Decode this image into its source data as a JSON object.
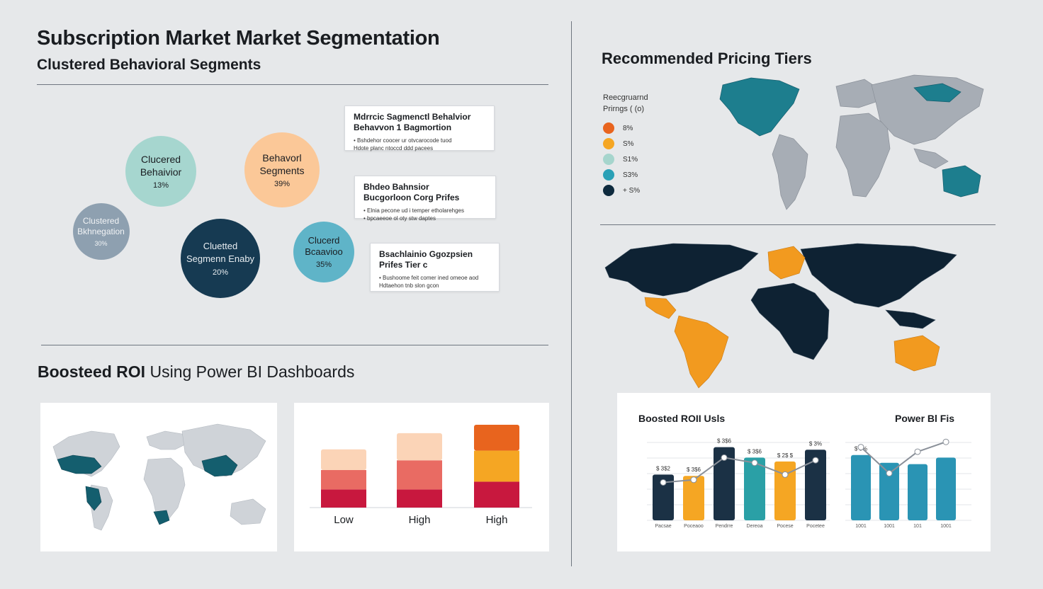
{
  "header": {
    "title": "Subscription Market Market Segmentation",
    "subtitle": "Clustered Behavioral Segments"
  },
  "bubbles": [
    {
      "label_1": "Clucered",
      "label_2": "Behaivior",
      "value": "13%",
      "color": "#6dbcb0"
    },
    {
      "label_1": "Behavorl",
      "label_2": "Segments",
      "value": "39%",
      "color": "#f39a1c"
    },
    {
      "label_1": "Clustered",
      "label_2": "Bkhnegation",
      "value": "30%",
      "color": "#55697a"
    },
    {
      "label_1": "Cluetted",
      "label_2": "Segmenn Enaby",
      "value": "20%",
      "color": "#0e2a3e"
    },
    {
      "label_1": "Clucerd",
      "label_2": "Bcaavioo",
      "value": "35%",
      "color": "#1b8fa8"
    }
  ],
  "callouts": [
    {
      "title_1": "Mdrrcic Sagmenctl Behalvior",
      "title_2": "Behavvon 1 Bagmortion",
      "body_1": "• Bshdehor coocer ur otvcarocode tuod",
      "body_2": "  Hdote planc ntoccd ddd pacees"
    },
    {
      "title_1": "Bhdeo Bahnsior",
      "title_2": "Bucgorloon Corg Prifes",
      "body_1": "• Elnia pecone ud i temper etholarehges",
      "body_2": "• bpcaeeoe ol oty stw daptes"
    },
    {
      "title_1": "Bsachlainio Ggozpsien",
      "title_2": "Prifes Tier c",
      "body_1": "• Bushoome feit comer ined omeoe aod",
      "body_2": "  Hdtaehon tnb slon gcon"
    }
  ],
  "roi": {
    "title_bold": "Boosteed ROI",
    "title_rest": " Using Power BI Dashboards"
  },
  "stacked_chart": {
    "categories": [
      "Low",
      "High",
      "High"
    ]
  },
  "pricing": {
    "title": "Recommended Pricing Tiers",
    "legend_title_1": "Reecgruarnd",
    "legend_title_2": "Prirngs ( (o)",
    "legend": [
      {
        "label": "8%",
        "color": "#e8641e"
      },
      {
        "label": "S%",
        "color": "#f5a623"
      },
      {
        "label": "S1%",
        "color": "#a6d5cd"
      },
      {
        "label": "S3%",
        "color": "#2aa0b6"
      },
      {
        "label": "+  S%",
        "color": "#0e2a3e"
      }
    ]
  },
  "roi_chart": {
    "title": "Boosted ROII Usls",
    "title_right": "Power Bl Fis"
  },
  "chart_data": [
    {
      "type": "bar",
      "title": "",
      "categories": [
        "Low",
        "High",
        "High"
      ],
      "series": [
        {
          "values": [
            28,
            28,
            40
          ],
          "color": "#c8183e"
        },
        {
          "values": [
            30,
            45,
            48
          ],
          "color": "#e96b63"
        },
        {
          "values": [
            32,
            42,
            40
          ],
          "color": "#fbd4b7"
        }
      ],
      "colors_by_category_top": [
        "#fbd4b7",
        "#fbd4b7",
        "#e8641e"
      ],
      "ylim": [
        0,
        140
      ]
    },
    {
      "type": "bar",
      "title": "Boosted ROII Usls",
      "categories": [
        "Pacsae",
        "Poceaoo",
        "Pendrre",
        "Dereoa",
        "Pocese",
        "Pocetee"
      ],
      "values": [
        70,
        68,
        112,
        96,
        90,
        108
      ],
      "bar_colors": [
        "#1b3145",
        "#f5a623",
        "#1b3145",
        "#2aa0a6",
        "#f5a623",
        "#1b3145"
      ],
      "data_labels": [
        "$ 3$2",
        "$ 3$6",
        "$ 3$6",
        "$ 3$6",
        "$ 2$ $",
        "$ 3%"
      ],
      "line": [
        58,
        62,
        96,
        88,
        70,
        92
      ],
      "ylim": [
        0,
        130
      ]
    },
    {
      "type": "bar",
      "title": "Power Bl Fis",
      "categories": [
        "1001",
        "1001",
        "101",
        "1001"
      ],
      "values": [
        100,
        88,
        86,
        96
      ],
      "bar_colors": [
        "#2a94b4",
        "#2a94b4",
        "#2a94b4",
        "#2a94b4"
      ],
      "data_labels": [
        "$ 3%"
      ],
      "line": [
        112,
        72,
        105,
        120
      ],
      "ylim": [
        0,
        130
      ]
    }
  ]
}
